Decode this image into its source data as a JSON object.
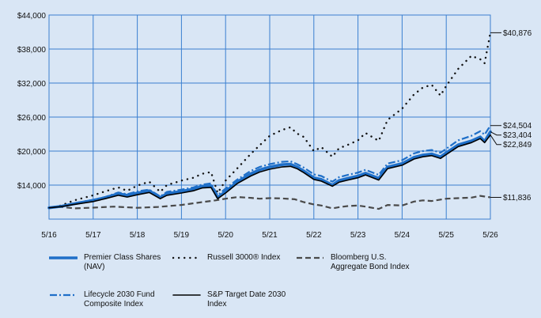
{
  "chart_data": {
    "type": "line",
    "ylim": [
      8000,
      44000
    ],
    "yticks": [
      8000,
      14000,
      20000,
      26000,
      32000,
      38000,
      44000
    ],
    "ytick_labels": [
      "",
      "$14,000",
      "$20,000",
      "$26,000",
      "$32,000",
      "$38,000",
      "$44,000"
    ],
    "xlim": [
      2016.33,
      2026.33
    ],
    "xticks": [
      2016.33,
      2017.33,
      2018.33,
      2019.33,
      2020.33,
      2021.33,
      2022.33,
      2023.33,
      2024.33,
      2025.33,
      2026.33
    ],
    "xtick_labels": [
      "5/16",
      "5/17",
      "5/18",
      "5/19",
      "5/20",
      "5/21",
      "5/22",
      "5/23",
      "5/24",
      "5/25",
      "5/26"
    ],
    "grid": true,
    "legend_position": "bottom",
    "series": [
      {
        "id": "bond",
        "name_lines": [
          "Bloomberg U.S.",
          "Aggregate Bond Index"
        ],
        "color": "#4a4a4a",
        "style": "dashed",
        "end_label": "$11,836",
        "points": [
          [
            2016.33,
            10000
          ],
          [
            2016.6,
            10150
          ],
          [
            2016.9,
            9900
          ],
          [
            2017.33,
            10020
          ],
          [
            2017.8,
            10200
          ],
          [
            2018.33,
            10000
          ],
          [
            2018.8,
            10150
          ],
          [
            2019.33,
            10500
          ],
          [
            2019.8,
            11000
          ],
          [
            2020.1,
            11300
          ],
          [
            2020.33,
            11600
          ],
          [
            2020.6,
            11900
          ],
          [
            2020.9,
            11750
          ],
          [
            2021.1,
            11600
          ],
          [
            2021.33,
            11700
          ],
          [
            2021.6,
            11650
          ],
          [
            2021.9,
            11500
          ],
          [
            2022.1,
            11000
          ],
          [
            2022.33,
            10600
          ],
          [
            2022.5,
            10400
          ],
          [
            2022.75,
            9900
          ],
          [
            2022.9,
            10100
          ],
          [
            2023.1,
            10300
          ],
          [
            2023.33,
            10400
          ],
          [
            2023.5,
            10200
          ],
          [
            2023.8,
            9800
          ],
          [
            2024.0,
            10500
          ],
          [
            2024.33,
            10400
          ],
          [
            2024.6,
            11100
          ],
          [
            2024.8,
            11300
          ],
          [
            2025.0,
            11200
          ],
          [
            2025.33,
            11600
          ],
          [
            2025.6,
            11700
          ],
          [
            2025.9,
            11800
          ],
          [
            2026.1,
            12100
          ],
          [
            2026.33,
            11836
          ]
        ]
      },
      {
        "id": "russell",
        "name_lines": [
          "Russell 3000® Index"
        ],
        "color": "#111111",
        "style": "dotted",
        "end_label": "$40,876",
        "points": [
          [
            2016.33,
            10000
          ],
          [
            2016.6,
            10400
          ],
          [
            2016.9,
            11300
          ],
          [
            2017.33,
            12200
          ],
          [
            2017.6,
            12900
          ],
          [
            2017.9,
            13600
          ],
          [
            2018.1,
            13000
          ],
          [
            2018.33,
            13900
          ],
          [
            2018.6,
            14600
          ],
          [
            2018.85,
            12800
          ],
          [
            2019.0,
            14000
          ],
          [
            2019.33,
            14800
          ],
          [
            2019.6,
            15300
          ],
          [
            2019.8,
            16000
          ],
          [
            2020.0,
            16300
          ],
          [
            2020.15,
            12600
          ],
          [
            2020.33,
            14800
          ],
          [
            2020.6,
            17000
          ],
          [
            2020.9,
            19500
          ],
          [
            2021.1,
            21000
          ],
          [
            2021.33,
            22700
          ],
          [
            2021.6,
            23700
          ],
          [
            2021.8,
            24200
          ],
          [
            2021.95,
            23100
          ],
          [
            2022.1,
            22500
          ],
          [
            2022.33,
            20000
          ],
          [
            2022.5,
            20700
          ],
          [
            2022.75,
            19000
          ],
          [
            2022.9,
            20500
          ],
          [
            2023.1,
            21100
          ],
          [
            2023.33,
            21900
          ],
          [
            2023.5,
            23200
          ],
          [
            2023.8,
            21800
          ],
          [
            2024.0,
            25500
          ],
          [
            2024.33,
            27500
          ],
          [
            2024.6,
            30000
          ],
          [
            2024.8,
            31200
          ],
          [
            2025.0,
            31700
          ],
          [
            2025.2,
            29800
          ],
          [
            2025.33,
            31500
          ],
          [
            2025.6,
            34500
          ],
          [
            2025.9,
            36800
          ],
          [
            2026.1,
            36200
          ],
          [
            2026.2,
            35500
          ],
          [
            2026.33,
            40876
          ]
        ]
      },
      {
        "id": "lifecycle",
        "name_lines": [
          "Lifecycle 2030 Fund",
          "Composite Index"
        ],
        "color": "#1f6fc8",
        "style": "dashdot",
        "end_label": "$24,504",
        "points": [
          [
            2016.33,
            10000
          ],
          [
            2016.6,
            10300
          ],
          [
            2016.9,
            10800
          ],
          [
            2017.33,
            11400
          ],
          [
            2017.6,
            11900
          ],
          [
            2017.9,
            12700
          ],
          [
            2018.1,
            12400
          ],
          [
            2018.33,
            12900
          ],
          [
            2018.6,
            13200
          ],
          [
            2018.85,
            12000
          ],
          [
            2019.0,
            12800
          ],
          [
            2019.33,
            13200
          ],
          [
            2019.6,
            13600
          ],
          [
            2019.8,
            14100
          ],
          [
            2020.0,
            14300
          ],
          [
            2020.15,
            12200
          ],
          [
            2020.33,
            13400
          ],
          [
            2020.6,
            15000
          ],
          [
            2020.9,
            16500
          ],
          [
            2021.1,
            17200
          ],
          [
            2021.33,
            17700
          ],
          [
            2021.6,
            18100
          ],
          [
            2021.8,
            18200
          ],
          [
            2021.95,
            17700
          ],
          [
            2022.1,
            17100
          ],
          [
            2022.33,
            15900
          ],
          [
            2022.5,
            15600
          ],
          [
            2022.75,
            14600
          ],
          [
            2022.9,
            15400
          ],
          [
            2023.1,
            15800
          ],
          [
            2023.33,
            16200
          ],
          [
            2023.5,
            16700
          ],
          [
            2023.8,
            15800
          ],
          [
            2024.0,
            17800
          ],
          [
            2024.33,
            18400
          ],
          [
            2024.6,
            19600
          ],
          [
            2024.8,
            20000
          ],
          [
            2025.0,
            20200
          ],
          [
            2025.2,
            19700
          ],
          [
            2025.33,
            20400
          ],
          [
            2025.6,
            21900
          ],
          [
            2025.9,
            22700
          ],
          [
            2026.1,
            23500
          ],
          [
            2026.2,
            22900
          ],
          [
            2026.33,
            24504
          ]
        ]
      },
      {
        "id": "premier",
        "name_lines": [
          "Premier Class Shares",
          "(NAV)"
        ],
        "color": "#1f6fc8",
        "style": "solid-thick",
        "end_label": "$23,404",
        "points": [
          [
            2016.33,
            10000
          ],
          [
            2016.6,
            10250
          ],
          [
            2016.9,
            10700
          ],
          [
            2017.33,
            11300
          ],
          [
            2017.6,
            11800
          ],
          [
            2017.9,
            12500
          ],
          [
            2018.1,
            12200
          ],
          [
            2018.33,
            12600
          ],
          [
            2018.6,
            13000
          ],
          [
            2018.85,
            11800
          ],
          [
            2019.0,
            12500
          ],
          [
            2019.33,
            12900
          ],
          [
            2019.6,
            13300
          ],
          [
            2019.8,
            13800
          ],
          [
            2020.0,
            13900
          ],
          [
            2020.15,
            11800
          ],
          [
            2020.33,
            12900
          ],
          [
            2020.6,
            14600
          ],
          [
            2020.9,
            16000
          ],
          [
            2021.1,
            16700
          ],
          [
            2021.33,
            17200
          ],
          [
            2021.6,
            17600
          ],
          [
            2021.8,
            17700
          ],
          [
            2021.95,
            17200
          ],
          [
            2022.1,
            16500
          ],
          [
            2022.33,
            15300
          ],
          [
            2022.5,
            15000
          ],
          [
            2022.75,
            14000
          ],
          [
            2022.9,
            14800
          ],
          [
            2023.1,
            15200
          ],
          [
            2023.33,
            15600
          ],
          [
            2023.5,
            16100
          ],
          [
            2023.8,
            15200
          ],
          [
            2024.0,
            17200
          ],
          [
            2024.33,
            17800
          ],
          [
            2024.6,
            18900
          ],
          [
            2024.8,
            19300
          ],
          [
            2025.0,
            19500
          ],
          [
            2025.2,
            19000
          ],
          [
            2025.33,
            19700
          ],
          [
            2025.6,
            21100
          ],
          [
            2025.9,
            21800
          ],
          [
            2026.1,
            22500
          ],
          [
            2026.2,
            21700
          ],
          [
            2026.33,
            23404
          ]
        ]
      },
      {
        "id": "sp",
        "name_lines": [
          "S&P Target Date 2030",
          "Index"
        ],
        "color": "#000000",
        "style": "solid",
        "end_label": "$22,849",
        "points": [
          [
            2016.33,
            10000
          ],
          [
            2016.6,
            10200
          ],
          [
            2016.9,
            10600
          ],
          [
            2017.33,
            11100
          ],
          [
            2017.6,
            11600
          ],
          [
            2017.9,
            12200
          ],
          [
            2018.1,
            11900
          ],
          [
            2018.33,
            12300
          ],
          [
            2018.6,
            12700
          ],
          [
            2018.85,
            11600
          ],
          [
            2019.0,
            12200
          ],
          [
            2019.33,
            12600
          ],
          [
            2019.6,
            13000
          ],
          [
            2019.8,
            13500
          ],
          [
            2020.0,
            13600
          ],
          [
            2020.15,
            11600
          ],
          [
            2020.33,
            12600
          ],
          [
            2020.6,
            14300
          ],
          [
            2020.9,
            15600
          ],
          [
            2021.1,
            16300
          ],
          [
            2021.33,
            16800
          ],
          [
            2021.6,
            17200
          ],
          [
            2021.8,
            17300
          ],
          [
            2021.95,
            16900
          ],
          [
            2022.1,
            16200
          ],
          [
            2022.33,
            15000
          ],
          [
            2022.5,
            14700
          ],
          [
            2022.75,
            13800
          ],
          [
            2022.9,
            14500
          ],
          [
            2023.1,
            14900
          ],
          [
            2023.33,
            15300
          ],
          [
            2023.5,
            15800
          ],
          [
            2023.8,
            14900
          ],
          [
            2024.0,
            16900
          ],
          [
            2024.33,
            17500
          ],
          [
            2024.6,
            18600
          ],
          [
            2024.8,
            19000
          ],
          [
            2025.0,
            19200
          ],
          [
            2025.2,
            18700
          ],
          [
            2025.33,
            19400
          ],
          [
            2025.6,
            20800
          ],
          [
            2025.9,
            21500
          ],
          [
            2026.1,
            22200
          ],
          [
            2026.2,
            21500
          ],
          [
            2026.33,
            22849
          ]
        ]
      }
    ],
    "legend_order": [
      "premier",
      "russell",
      "bond",
      "lifecycle",
      "sp"
    ]
  }
}
